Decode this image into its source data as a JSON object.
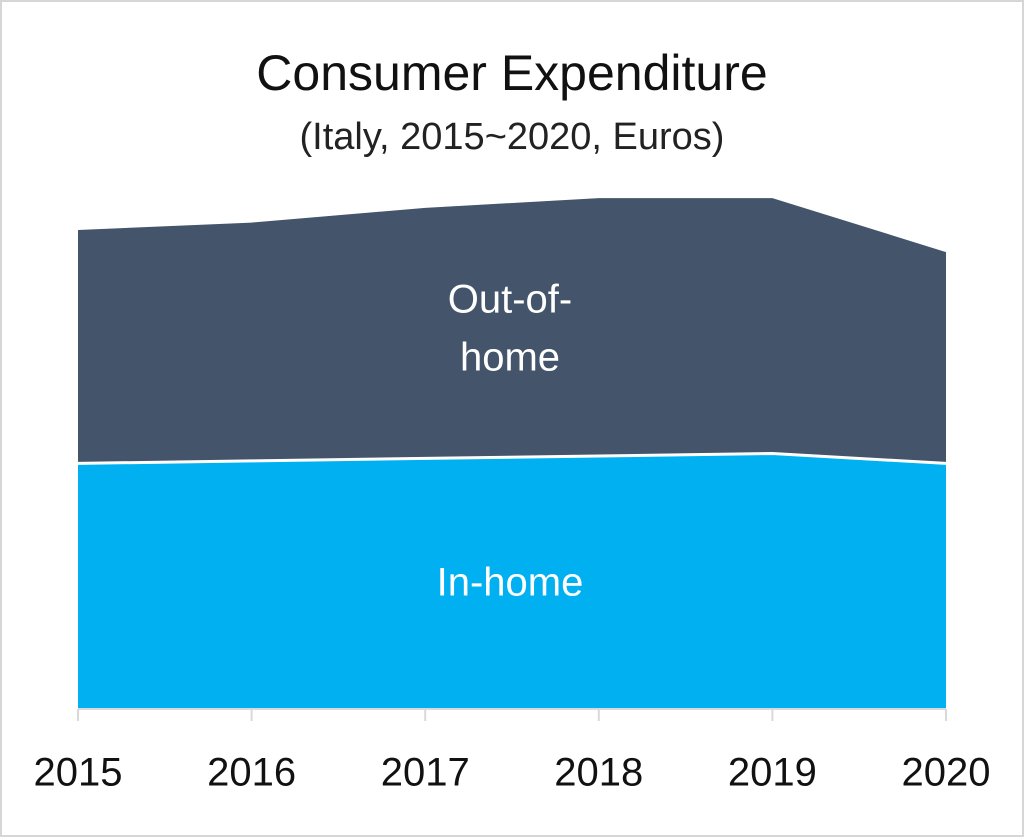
{
  "chart_data": {
    "type": "area",
    "stacked": true,
    "title": "Consumer Expenditure",
    "subtitle": "(Italy, 2015~2020, Euros)",
    "x": [
      "2015",
      "2016",
      "2017",
      "2018",
      "2019",
      "2020"
    ],
    "series": [
      {
        "name": "In-home",
        "values": [
          100,
          101,
          102,
          103,
          104,
          100
        ],
        "color": "#00b0f0"
      },
      {
        "name": "Out-of-home",
        "values": [
          95,
          97,
          102,
          105,
          104,
          86
        ],
        "color": "#44546a"
      }
    ],
    "ylim": [
      0,
      210
    ],
    "grid": false,
    "legend": "inline labels"
  }
}
